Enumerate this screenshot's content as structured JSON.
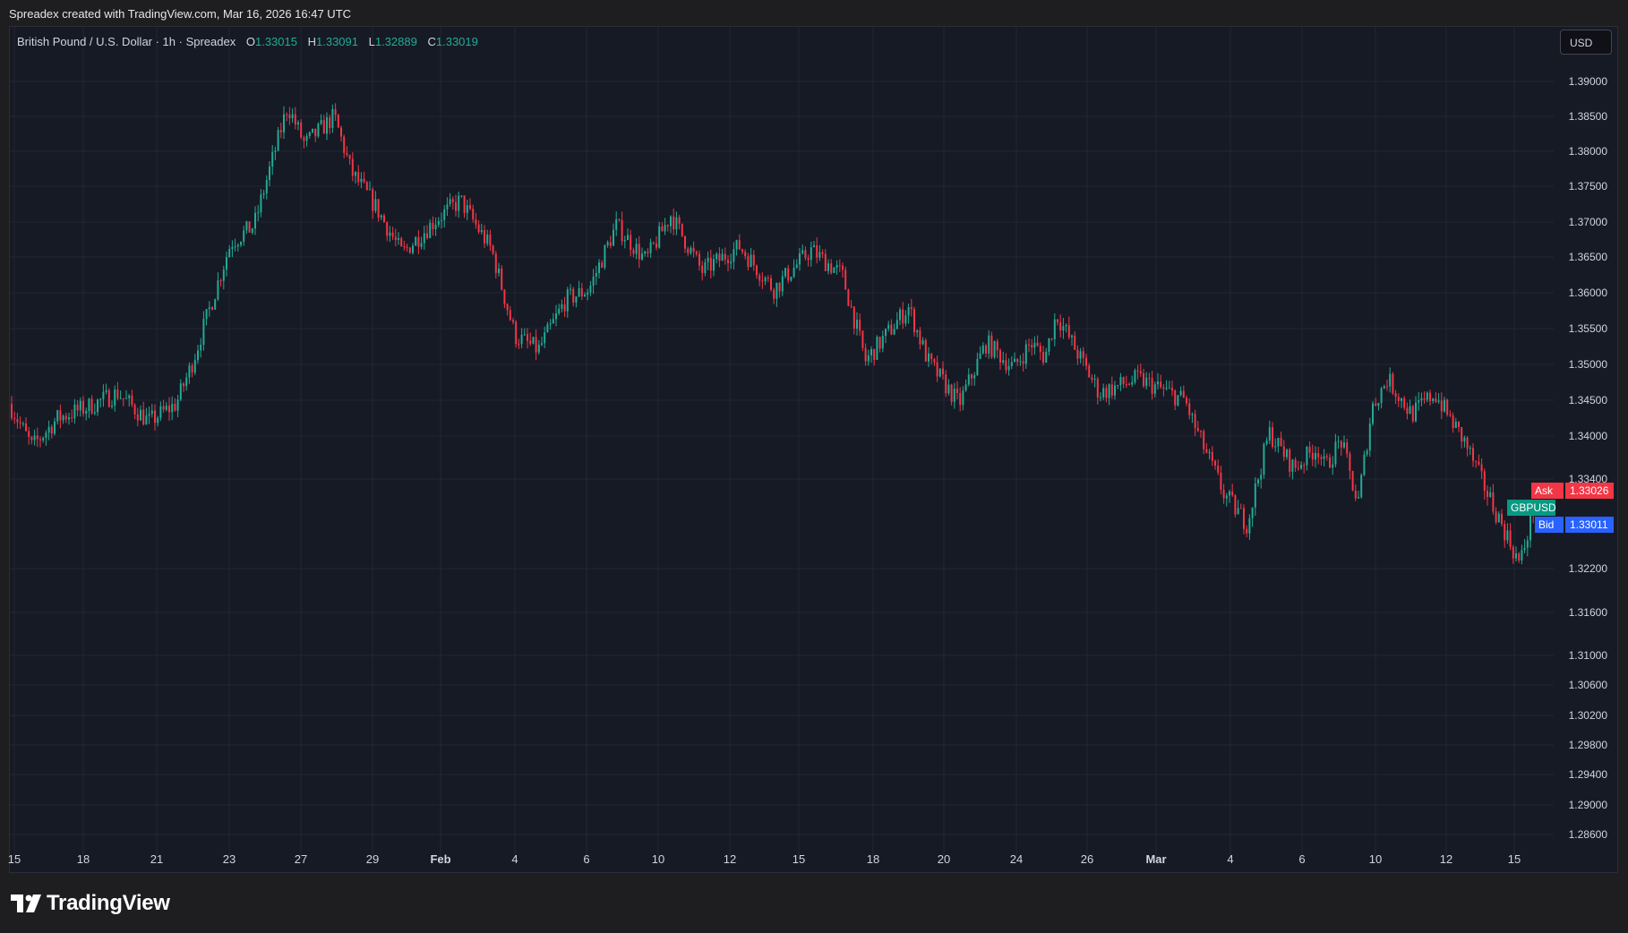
{
  "caption": "Spreadex created with TradingView.com, Mar 16, 2026 16:47 UTC",
  "legend": {
    "symbol": "British Pound / U.S. Dollar · 1h · Spreadex",
    "open_label": "O",
    "open": "1.33015",
    "high_label": "H",
    "high": "1.33091",
    "low_label": "L",
    "low": "1.32889",
    "close_label": "C",
    "close": "1.33019"
  },
  "currency_button": "USD",
  "badges": {
    "ask_label": "Ask",
    "ask_value": "1.33026",
    "symbol": "GBPUSD",
    "bid_label": "Bid",
    "bid_value": "1.33011"
  },
  "logo_text": "TradingView",
  "colors": {
    "up": "#22ab94",
    "down": "#f23645",
    "background": "#161a25",
    "grid": "#232735",
    "ask": "#f23645",
    "symbol": "#089981",
    "bid": "#2962ff"
  },
  "chart_data": {
    "type": "candlestick",
    "title": "British Pound / U.S. Dollar · 1h · Spreadex",
    "y_axis": {
      "ticks": [
        "1.39000",
        "1.38500",
        "1.38000",
        "1.37500",
        "1.37000",
        "1.36500",
        "1.36000",
        "1.35500",
        "1.35000",
        "1.34500",
        "1.34000",
        "1.33400",
        "1.32200",
        "1.31600",
        "1.31000",
        "1.30600",
        "1.30200",
        "1.29800",
        "1.29400",
        "1.29000",
        "1.28600"
      ],
      "values": [
        1.39,
        1.385,
        1.38,
        1.375,
        1.37,
        1.365,
        1.36,
        1.355,
        1.35,
        1.345,
        1.34,
        1.334,
        1.322,
        1.316,
        1.31,
        1.306,
        1.302,
        1.298,
        1.294,
        1.29,
        1.286
      ]
    },
    "x_axis": {
      "ticks": [
        "15",
        "18",
        "21",
        "23",
        "27",
        "29",
        "Feb",
        "4",
        "6",
        "10",
        "12",
        "15",
        "18",
        "20",
        "24",
        "26",
        "Mar",
        "4",
        "6",
        "10",
        "12",
        "15"
      ]
    },
    "price_path": [
      [
        "15",
        1.3445
      ],
      [
        "18",
        1.3385
      ],
      [
        "19",
        1.3425
      ],
      [
        "20",
        1.344
      ],
      [
        "21",
        1.346
      ],
      [
        "22",
        1.342
      ],
      [
        "23",
        1.3445
      ],
      [
        "23b",
        1.35
      ],
      [
        "25",
        1.367
      ],
      [
        "26",
        1.3695
      ],
      [
        "27",
        1.3865
      ],
      [
        "28",
        1.381
      ],
      [
        "29",
        1.385
      ],
      [
        "30",
        1.377
      ],
      [
        "Feb",
        1.372
      ],
      [
        "2",
        1.3655
      ],
      [
        "3",
        1.3705
      ],
      [
        "4",
        1.373
      ],
      [
        "5",
        1.366
      ],
      [
        "5b",
        1.354
      ],
      [
        "6",
        1.352
      ],
      [
        "8",
        1.359
      ],
      [
        "9",
        1.3605
      ],
      [
        "10",
        1.3695
      ],
      [
        "11",
        1.3645
      ],
      [
        "11b",
        1.371
      ],
      [
        "12",
        1.363
      ],
      [
        "13",
        1.3665
      ],
      [
        "14",
        1.3605
      ],
      [
        "15",
        1.366
      ],
      [
        "16",
        1.3625
      ],
      [
        "17",
        1.3505
      ],
      [
        "18",
        1.358
      ],
      [
        "19",
        1.3505
      ],
      [
        "20",
        1.3445
      ],
      [
        "21",
        1.353
      ],
      [
        "23",
        1.3495
      ],
      [
        "24",
        1.353
      ],
      [
        "25",
        1.351
      ],
      [
        "26",
        1.357
      ],
      [
        "27",
        1.346
      ],
      [
        "27b",
        1.348
      ],
      [
        "Mar",
        1.345
      ],
      [
        "2",
        1.342
      ],
      [
        "3",
        1.332
      ],
      [
        "3b",
        1.328
      ],
      [
        "4",
        1.3405
      ],
      [
        "5",
        1.3355
      ],
      [
        "6",
        1.3385
      ],
      [
        "7",
        1.3355
      ],
      [
        "8",
        1.3395
      ],
      [
        "9",
        1.3305
      ],
      [
        "10",
        1.344
      ],
      [
        "10b",
        1.348
      ],
      [
        "11",
        1.343
      ],
      [
        "12",
        1.346
      ],
      [
        "13",
        1.339
      ],
      [
        "14",
        1.334
      ],
      [
        "14b",
        1.326
      ],
      [
        "15",
        1.3225
      ],
      [
        "16",
        1.3302
      ]
    ],
    "last": {
      "ask": 1.33026,
      "bid": 1.33011
    }
  }
}
